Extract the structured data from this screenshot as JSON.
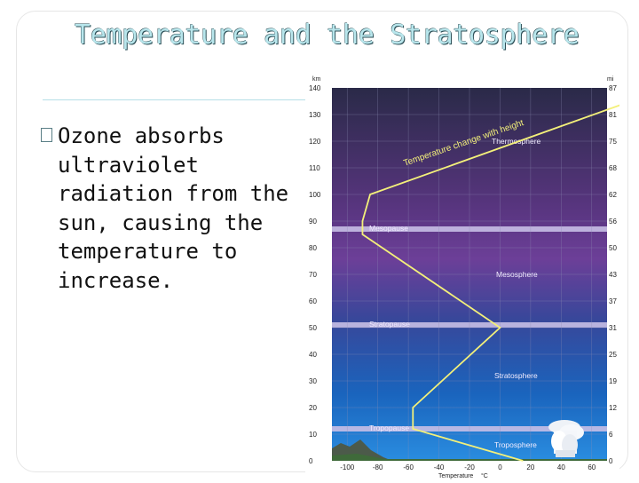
{
  "slide": {
    "title": "Temperature and the Stratosphere",
    "bullet_lines": [
      "Ozone absorbs",
      "ultraviolet",
      "radiation from the",
      "sun, causing the",
      "temperature to",
      "increase."
    ]
  },
  "figure": {
    "left_unit": "km",
    "right_unit": "mi",
    "km_ticks": [
      "140",
      "130",
      "120",
      "110",
      "100",
      "90",
      "80",
      "70",
      "60",
      "50",
      "40",
      "30",
      "20",
      "10",
      "0"
    ],
    "mi_ticks": [
      "87",
      "81",
      "75",
      "68",
      "62",
      "56",
      "50",
      "43",
      "37",
      "31",
      "25",
      "19",
      "12",
      "6",
      "0"
    ],
    "x_ticks": [
      "-100",
      "-80",
      "-60",
      "-40",
      "-20",
      "0",
      "20",
      "40",
      "60"
    ],
    "x_label": "Temperature",
    "x_unit": "°C",
    "curve_label": "Temperature change with height",
    "layers": {
      "thermosphere": "Thermosphere",
      "mesopause": "Mesopause",
      "mesosphere": "Mesosphere",
      "stratopause": "Stratopause",
      "stratosphere": "Stratosphere",
      "tropopause": "Tropopause",
      "troposphere": "Troposphere"
    },
    "colors": {
      "curve": "#f3f07a",
      "sky_top": "#2e2c52",
      "sky_mid": "#6a3f95",
      "sky_low": "#1b73c9",
      "band": "#c8bfe6"
    }
  },
  "chart_data": {
    "type": "line",
    "title": "",
    "xlabel": "Temperature",
    "x_unit": "°C",
    "ylabel": "km",
    "ylabel_right": "mi",
    "xlim": [
      -110,
      70
    ],
    "ylim": [
      0,
      140
    ],
    "series": [
      {
        "x": [
          15,
          -57,
          -57,
          0,
          -90,
          -90,
          -85,
          110
        ],
        "y": [
          0,
          12,
          20,
          50,
          85,
          90,
          100,
          140
        ]
      }
    ]
  }
}
